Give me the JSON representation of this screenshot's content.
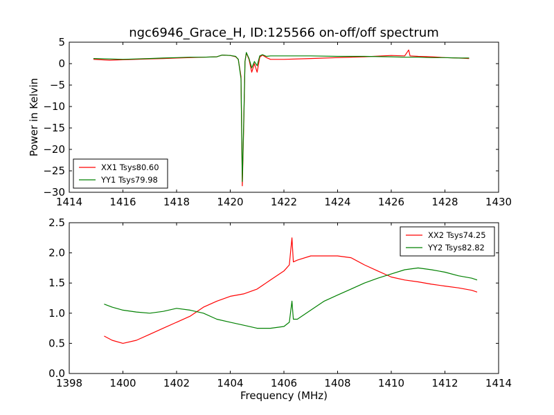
{
  "figure": {
    "title": "ngc6946_Grace_H, ID:125566 on-off/off spectrum"
  },
  "chart_data": [
    {
      "type": "line",
      "title": "ngc6946_Grace_H, ID:125566 on-off/off spectrum",
      "xlabel": "",
      "ylabel": "Power in Kelvin",
      "xlim": [
        1414,
        1430
      ],
      "ylim": [
        -30,
        5
      ],
      "xticks": [
        "1414",
        "1416",
        "1418",
        "1420",
        "1422",
        "1424",
        "1426",
        "1428",
        "1430"
      ],
      "yticks": [
        "5",
        "0",
        "−5",
        "−10",
        "−15",
        "−20",
        "−25",
        "−30"
      ],
      "legend_position": "lower-left",
      "grid": false,
      "series": [
        {
          "name": "XX1 Tsys80.60",
          "color": "#ff0000",
          "x": [
            1414.9,
            1415.5,
            1416.0,
            1416.5,
            1417.0,
            1417.5,
            1418.0,
            1418.5,
            1419.0,
            1419.5,
            1419.7,
            1420.0,
            1420.2,
            1420.3,
            1420.4,
            1420.45,
            1420.5,
            1420.55,
            1420.6,
            1420.7,
            1420.8,
            1420.9,
            1421.0,
            1421.1,
            1421.2,
            1421.35,
            1421.5,
            1422.0,
            1423.0,
            1424.0,
            1425.0,
            1426.0,
            1426.5,
            1426.65,
            1426.7,
            1427.0,
            1427.5,
            1428.0,
            1428.5,
            1428.9
          ],
          "y": [
            1.0,
            0.8,
            0.9,
            1.0,
            1.1,
            1.2,
            1.3,
            1.4,
            1.5,
            1.6,
            2.0,
            1.9,
            1.6,
            1.0,
            -3.0,
            -28.5,
            -15.0,
            0.5,
            2.5,
            1.0,
            -2.0,
            0.0,
            -2.0,
            1.5,
            2.0,
            1.4,
            1.0,
            1.0,
            1.2,
            1.4,
            1.6,
            1.9,
            1.8,
            3.2,
            1.8,
            1.7,
            1.6,
            1.4,
            1.3,
            1.2
          ]
        },
        {
          "name": "YY1 Tsys79.98",
          "color": "#008000",
          "x": [
            1414.9,
            1415.5,
            1416.0,
            1416.5,
            1417.0,
            1417.5,
            1418.0,
            1418.5,
            1419.0,
            1419.5,
            1419.7,
            1420.0,
            1420.2,
            1420.3,
            1420.4,
            1420.45,
            1420.5,
            1420.55,
            1420.6,
            1420.7,
            1420.8,
            1420.9,
            1421.0,
            1421.1,
            1421.2,
            1421.35,
            1421.5,
            1422.0,
            1423.0,
            1424.0,
            1425.0,
            1426.0,
            1426.5,
            1427.0,
            1427.5,
            1428.0,
            1428.5,
            1428.9
          ],
          "y": [
            1.2,
            1.1,
            1.0,
            1.1,
            1.2,
            1.3,
            1.4,
            1.5,
            1.5,
            1.6,
            2.0,
            1.9,
            1.7,
            1.0,
            -3.5,
            -27.5,
            -14.0,
            0.5,
            2.6,
            1.2,
            -1.0,
            0.5,
            -0.5,
            1.8,
            2.1,
            1.7,
            1.8,
            1.8,
            1.8,
            1.7,
            1.7,
            1.6,
            1.5,
            1.5,
            1.4,
            1.4,
            1.3,
            1.3
          ]
        }
      ]
    },
    {
      "type": "line",
      "title": "",
      "xlabel": "Frequency (MHz)",
      "ylabel": "",
      "xlim": [
        1398,
        1414
      ],
      "ylim": [
        0.0,
        2.5
      ],
      "xticks": [
        "1398",
        "1400",
        "1402",
        "1404",
        "1406",
        "1408",
        "1410",
        "1412",
        "1414"
      ],
      "yticks": [
        "2.5",
        "2.0",
        "1.5",
        "1.0",
        "0.5",
        "0.0"
      ],
      "legend_position": "upper-right",
      "grid": false,
      "series": [
        {
          "name": "XX2 Tsys74.25",
          "color": "#ff0000",
          "x": [
            1399.3,
            1399.6,
            1400.0,
            1400.5,
            1401.0,
            1401.5,
            1402.0,
            1402.5,
            1403.0,
            1403.5,
            1404.0,
            1404.5,
            1405.0,
            1405.5,
            1406.0,
            1406.2,
            1406.3,
            1406.35,
            1406.5,
            1407.0,
            1407.5,
            1408.0,
            1408.5,
            1409.0,
            1409.5,
            1410.0,
            1410.5,
            1411.0,
            1411.5,
            1412.0,
            1412.5,
            1413.0,
            1413.2
          ],
          "y": [
            0.62,
            0.55,
            0.5,
            0.55,
            0.65,
            0.75,
            0.85,
            0.95,
            1.1,
            1.2,
            1.28,
            1.32,
            1.4,
            1.55,
            1.7,
            1.8,
            2.25,
            1.85,
            1.88,
            1.95,
            1.95,
            1.95,
            1.92,
            1.8,
            1.7,
            1.6,
            1.55,
            1.52,
            1.48,
            1.45,
            1.42,
            1.38,
            1.35
          ]
        },
        {
          "name": "YY2 Tsys82.82",
          "color": "#008000",
          "x": [
            1399.3,
            1399.6,
            1400.0,
            1400.5,
            1401.0,
            1401.5,
            1402.0,
            1402.5,
            1403.0,
            1403.5,
            1404.0,
            1404.5,
            1405.0,
            1405.5,
            1406.0,
            1406.2,
            1406.3,
            1406.35,
            1406.5,
            1407.0,
            1407.5,
            1408.0,
            1408.5,
            1409.0,
            1409.5,
            1410.0,
            1410.5,
            1411.0,
            1411.5,
            1412.0,
            1412.5,
            1413.0,
            1413.2
          ],
          "y": [
            1.15,
            1.1,
            1.05,
            1.02,
            1.0,
            1.03,
            1.08,
            1.05,
            1.0,
            0.9,
            0.85,
            0.8,
            0.75,
            0.75,
            0.78,
            0.85,
            1.2,
            0.9,
            0.9,
            1.05,
            1.2,
            1.3,
            1.4,
            1.5,
            1.58,
            1.65,
            1.72,
            1.75,
            1.72,
            1.68,
            1.62,
            1.58,
            1.55
          ]
        }
      ]
    }
  ]
}
